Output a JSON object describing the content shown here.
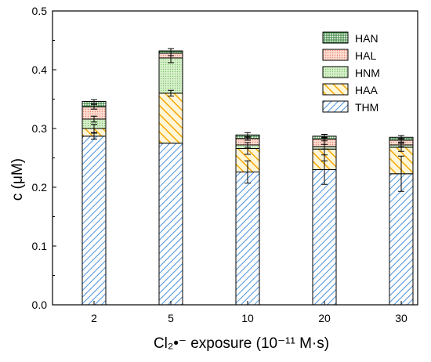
{
  "chart_data": {
    "type": "bar",
    "stacked": true,
    "categories": [
      "2",
      "5",
      "10",
      "20",
      "30"
    ],
    "series": [
      {
        "name": "THM",
        "values": [
          0.287,
          0.275,
          0.226,
          0.23,
          0.223
        ],
        "error": [
          0.005,
          0.0,
          0.019,
          0.025,
          0.03
        ],
        "color": "#4a90d9",
        "pattern": "diagonal-lines"
      },
      {
        "name": "HAA",
        "values": [
          0.013,
          0.085,
          0.04,
          0.035,
          0.045
        ],
        "error": [
          0.007,
          0.005,
          0.01,
          0.02,
          0.007
        ],
        "color": "#f5a800",
        "pattern": "diagonal-lines"
      },
      {
        "name": "HNM",
        "values": [
          0.016,
          0.06,
          0.006,
          0.004,
          0.004
        ],
        "error": [
          0.005,
          0.008,
          0.004,
          0.004,
          0.003
        ],
        "color": "#7cc46a",
        "pattern": "dots"
      },
      {
        "name": "HAL",
        "values": [
          0.021,
          0.008,
          0.011,
          0.013,
          0.008
        ],
        "error": [
          0.004,
          0.004,
          0.003,
          0.003,
          0.003
        ],
        "color": "#e9856e",
        "pattern": "dots"
      },
      {
        "name": "HAN",
        "values": [
          0.009,
          0.004,
          0.006,
          0.005,
          0.005
        ],
        "error": [
          0.003,
          0.004,
          0.004,
          0.003,
          0.003
        ],
        "color": "#3a8a3a",
        "pattern": "grid"
      }
    ],
    "xlabel": "Cl₂•⁻ exposure (10⁻¹¹ M·s)",
    "ylabel": "c (μM)",
    "ylim": [
      0,
      0.5
    ],
    "yticks": [
      "0.0",
      "0.1",
      "0.2",
      "0.3",
      "0.4",
      "0.5"
    ],
    "legend_order": [
      "HAN",
      "HAL",
      "HNM",
      "HAA",
      "THM"
    ],
    "legend_position": "top-right",
    "grid": false
  }
}
